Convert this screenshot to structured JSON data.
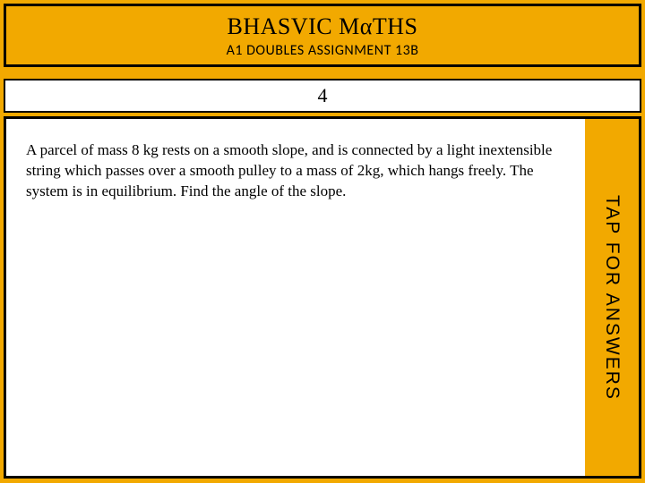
{
  "header": {
    "title": "BHASVIC MαTHS",
    "subtitle": "A1 DOUBLES ASSIGNMENT 13B"
  },
  "question": {
    "number": "4",
    "text": "A parcel of mass 8 kg rests on a smooth slope, and is connected by a light inextensible string which passes over a smooth pulley to a mass of 2kg, which hangs freely. The system is in equilibrium. Find the angle of the slope."
  },
  "sidebar": {
    "tap_label": "TAP FOR ANSWERS"
  },
  "colors": {
    "background": "#f2a900",
    "panel": "#ffffff",
    "border": "#000000",
    "text": "#000000"
  }
}
